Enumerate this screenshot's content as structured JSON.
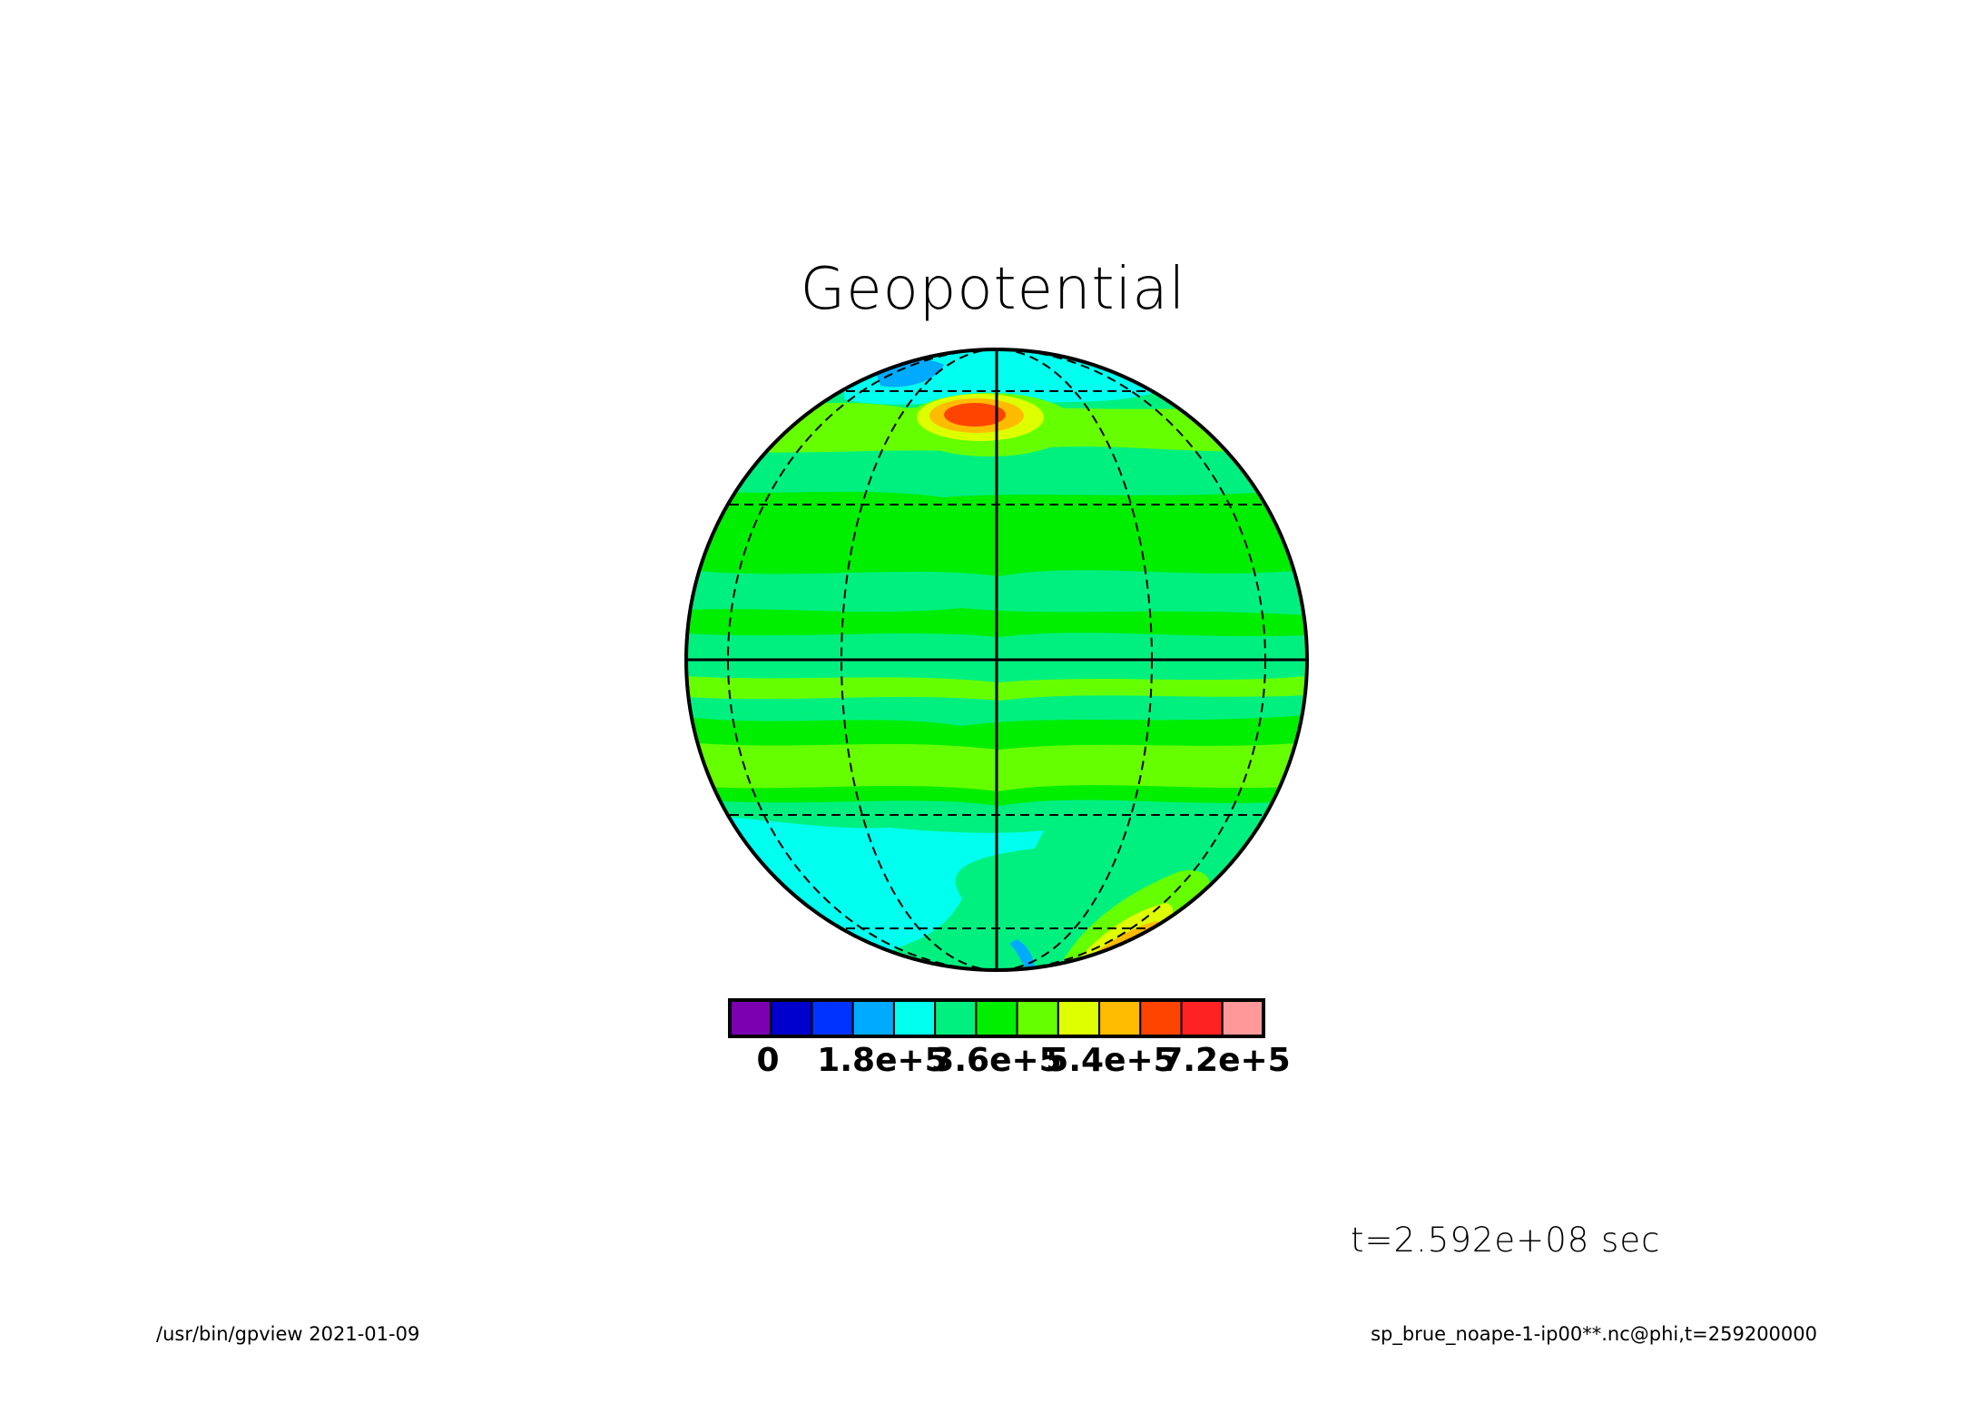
{
  "title": "Geopotential",
  "time_label": "t=2.592e+08 sec",
  "footer": {
    "left": "/usr/bin/gpview   2021-01-09",
    "right": "sp_brue_noape-1-ip00**.nc@phi,t=259200000"
  },
  "colorbar": {
    "colors": [
      "#7a00b0",
      "#0000cc",
      "#0033ff",
      "#00aaff",
      "#00ffee",
      "#00f080",
      "#00ee00",
      "#66ff00",
      "#ddff00",
      "#ffbb00",
      "#ff4400",
      "#ff2222",
      "#ff9999"
    ],
    "tick_labels": [
      "0",
      "1.8e+5",
      "3.6e+5",
      "5.4e+5",
      "7.2e+5"
    ],
    "tick_values": [
      0,
      180000,
      360000,
      540000,
      720000
    ],
    "levels": [
      -60000,
      0,
      60000,
      120000,
      180000,
      240000,
      300000,
      360000,
      420000,
      480000,
      540000,
      600000,
      660000,
      720000
    ]
  },
  "map": {
    "projection": "orthographic",
    "background_color": "#00f080",
    "grid_style": "dashed",
    "regions": [
      {
        "name": "band-light-green-1",
        "color": "#66ff00"
      },
      {
        "name": "band-bright-green-1",
        "color": "#00ee00"
      },
      {
        "name": "band-bright-green-2",
        "color": "#00ee00"
      },
      {
        "name": "band-light-green-2",
        "color": "#66ff00"
      },
      {
        "name": "band-bright-green-3",
        "color": "#00ee00"
      },
      {
        "name": "band-light-green-3",
        "color": "#66ff00"
      },
      {
        "name": "south-cyan-region",
        "color": "#00ffee"
      },
      {
        "name": "north-cyan-cap",
        "color": "#00ffee"
      },
      {
        "name": "north-blue-patch",
        "color": "#00aaff"
      },
      {
        "name": "north-high-1",
        "color": "#66ff00"
      },
      {
        "name": "north-high-2",
        "color": "#ddff00"
      },
      {
        "name": "north-high-3",
        "color": "#ffbb00"
      },
      {
        "name": "north-high-4",
        "color": "#ff4400"
      },
      {
        "name": "south-east-high-1",
        "color": "#66ff00"
      },
      {
        "name": "south-east-high-2",
        "color": "#ddff00"
      },
      {
        "name": "south-east-high-3",
        "color": "#ffbb00"
      },
      {
        "name": "south-east-high-4",
        "color": "#ff4400"
      },
      {
        "name": "south-blue-streak",
        "color": "#00aaff"
      }
    ]
  }
}
